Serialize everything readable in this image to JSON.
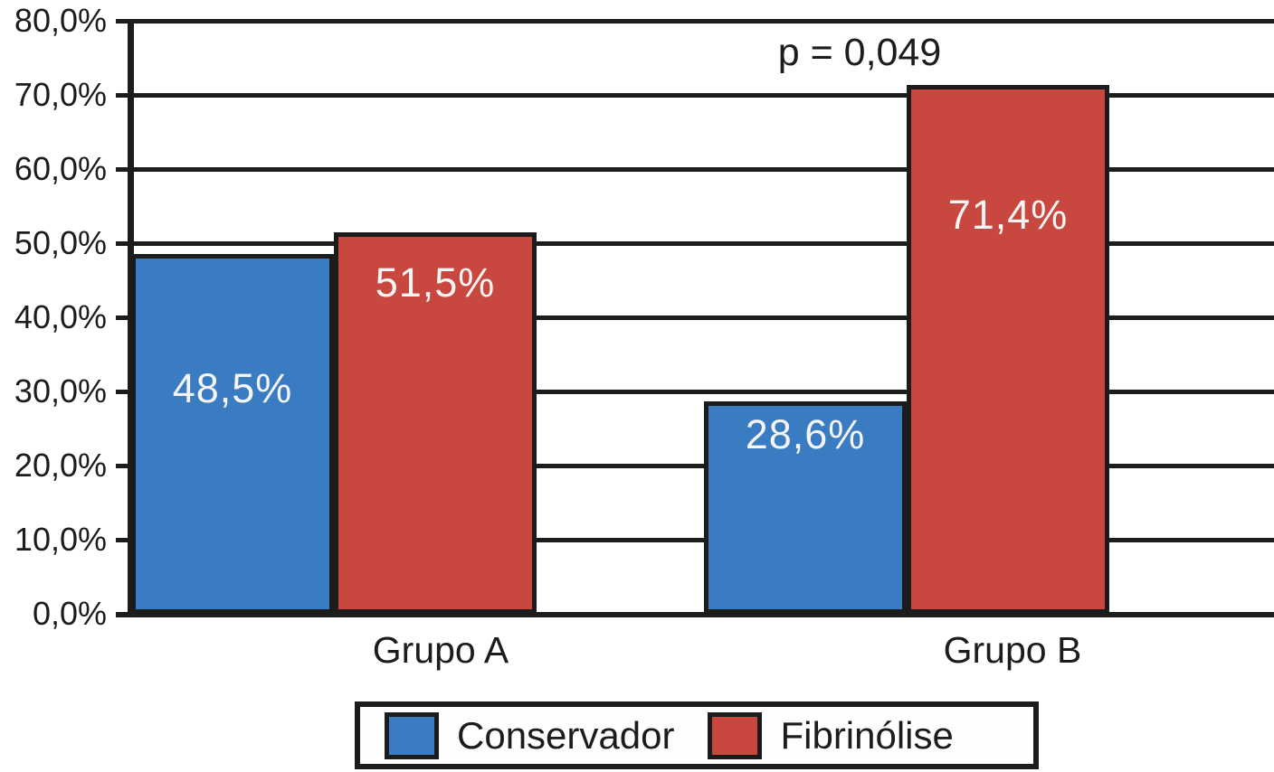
{
  "chart_data": {
    "type": "bar",
    "categories": [
      "Grupo A",
      "Grupo B"
    ],
    "series": [
      {
        "name": "Conservador",
        "color": "#3a7cc1",
        "values": [
          48.5,
          28.6
        ],
        "labels": [
          "48,5%",
          "28,6%"
        ]
      },
      {
        "name": "Fibrinólise",
        "color": "#c8473e",
        "values": [
          51.5,
          71.4
        ],
        "labels": [
          "51,5%",
          "71,4%"
        ]
      }
    ],
    "annotation": "p = 0,049",
    "title": "",
    "xlabel": "",
    "ylabel": "",
    "ylim": [
      0,
      80
    ],
    "ytick_step": 10,
    "ytick_labels": [
      "0,0%",
      "10,0%",
      "20,0%",
      "30,0%",
      "40,0%",
      "50,0%",
      "60,0%",
      "70,0%",
      "80,0%"
    ],
    "grid": true,
    "legend_position": "bottom",
    "bar_label_color": "#f5f5f5",
    "line_color": "#1c1c1c"
  }
}
